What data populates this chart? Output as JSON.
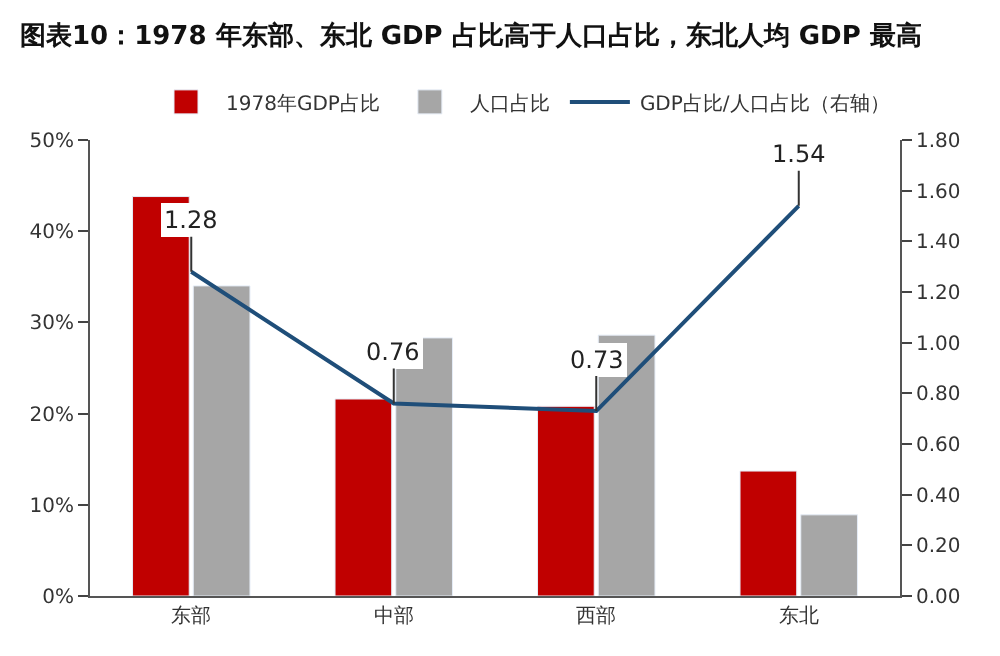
{
  "chart_data": {
    "type": "bar",
    "title": "图表10：1978 年东部、东北 GDP 占比高于人口占比，东北人均 GDP 最高",
    "categories": [
      "东部",
      "中部",
      "西部",
      "东北"
    ],
    "series": [
      {
        "name": "1978年GDP占比",
        "color": "#c00000",
        "values": [
          43.8,
          21.6,
          20.8,
          13.7
        ]
      },
      {
        "name": "人口占比",
        "color": "#a6a6a6",
        "values": [
          34.0,
          28.3,
          28.6,
          8.9
        ]
      },
      {
        "name": "GDP占比/人口占比（右轴）",
        "color": "#1f4e79",
        "type": "line",
        "axis": "y2",
        "values": [
          1.28,
          0.76,
          0.73,
          1.54
        ],
        "value_labels": [
          "1.28",
          "0.76",
          "0.73",
          "1.54"
        ]
      }
    ],
    "ylim": [
      0,
      50
    ],
    "yticks": [
      {
        "value": 0,
        "label": "0%"
      },
      {
        "value": 10,
        "label": "10%"
      },
      {
        "value": 20,
        "label": "20%"
      },
      {
        "value": 30,
        "label": "30%"
      },
      {
        "value": 40,
        "label": "40%"
      },
      {
        "value": 50,
        "label": "50%"
      }
    ],
    "y2lim": [
      0,
      1.8
    ],
    "y2ticks": [
      {
        "value": 0,
        "label": "0.00"
      },
      {
        "value": 0.2,
        "label": "0.20"
      },
      {
        "value": 0.4,
        "label": "0.40"
      },
      {
        "value": 0.6,
        "label": "0.60"
      },
      {
        "value": 0.8,
        "label": "0.80"
      },
      {
        "value": 1.0,
        "label": "1.00"
      },
      {
        "value": 1.2,
        "label": "1.20"
      },
      {
        "value": 1.4,
        "label": "1.40"
      },
      {
        "value": 1.6,
        "label": "1.60"
      },
      {
        "value": 1.8,
        "label": "1.80"
      }
    ],
    "legend": "top"
  }
}
